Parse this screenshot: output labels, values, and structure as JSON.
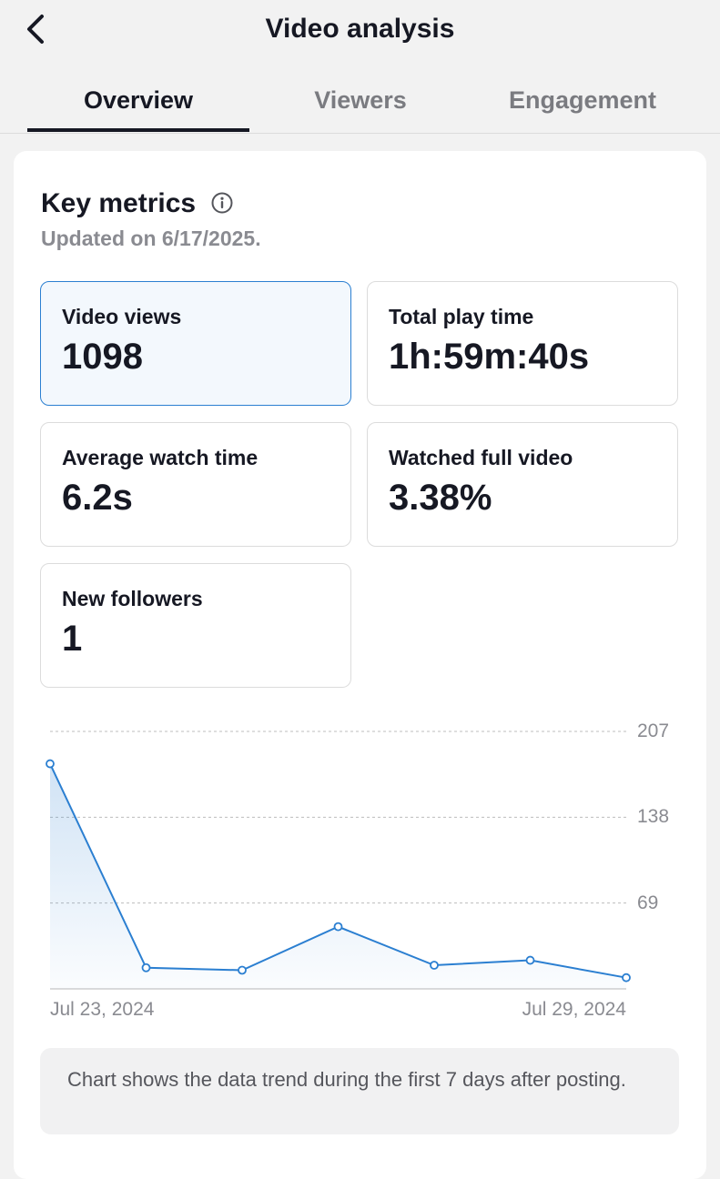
{
  "header": {
    "title": "Video analysis",
    "back_icon": "chevron-left-icon"
  },
  "tabs": [
    {
      "label": "Overview",
      "active": true
    },
    {
      "label": "Viewers",
      "active": false
    },
    {
      "label": "Engagement",
      "active": false
    }
  ],
  "key_metrics": {
    "title": "Key metrics",
    "info_icon": "info-icon",
    "updated": "Updated on 6/17/2025.",
    "items": [
      {
        "label": "Video views",
        "value": "1098",
        "selected": true
      },
      {
        "label": "Total play time",
        "value": "1h:59m:40s",
        "selected": false
      },
      {
        "label": "Average watch time",
        "value": "6.2s",
        "selected": false
      },
      {
        "label": "Watched full video",
        "value": "3.38%",
        "selected": false
      },
      {
        "label": "New followers",
        "value": "1",
        "selected": false
      }
    ]
  },
  "chart_data": {
    "type": "area",
    "x": [
      "Jul 23, 2024",
      "Jul 24, 2024",
      "Jul 25, 2024",
      "Jul 26, 2024",
      "Jul 27, 2024",
      "Jul 28, 2024",
      "Jul 29, 2024"
    ],
    "x_tick_labels": [
      "Jul 23, 2024",
      "Jul 29, 2024"
    ],
    "series": [
      {
        "values": [
          181,
          17,
          15,
          50,
          19,
          23,
          9
        ]
      }
    ],
    "y_ticks": [
      69,
      138,
      207
    ],
    "ylim": [
      0,
      207
    ],
    "grid": true,
    "color": "#2b7fd1"
  },
  "note": "Chart shows the data trend during the first 7 days after posting."
}
